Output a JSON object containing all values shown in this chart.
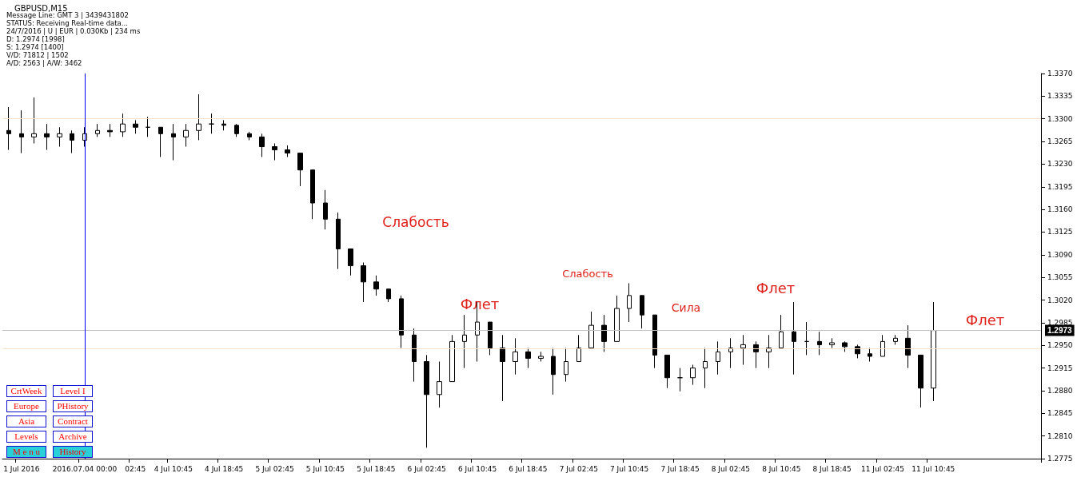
{
  "chart_data": [
    {
      "type": "candlestick",
      "title": "GBPUSD,M15",
      "color": "#000000",
      "categories": [
        null,
        "1 Jul 2016",
        null,
        null,
        null,
        null,
        "2016.07.04 00:00",
        null,
        null,
        null,
        "02:45",
        null,
        null,
        "4 Jul 10:45",
        null,
        null,
        null,
        "4 Jul 18:45",
        null,
        null,
        null,
        "5 Jul 02:45",
        null,
        null,
        null,
        "5 Jul 10:45",
        null,
        null,
        null,
        "5 Jul 18:45",
        null,
        null,
        null,
        "6 Jul 02:45",
        null,
        null,
        null,
        "6 Jul 10:45",
        null,
        null,
        null,
        "6 Jul 18:45",
        null,
        null,
        null,
        "7 Jul 02:45",
        null,
        null,
        null,
        "7 Jul 10:45",
        null,
        null,
        null,
        "7 Jul 18:45",
        null,
        null,
        null,
        "8 Jul 02:45",
        null,
        null,
        null,
        "8 Jul 10:45",
        null,
        null,
        null,
        "8 Jul 18:45",
        null,
        null,
        null,
        "11 Jul 02:45",
        null,
        null,
        null,
        "11 Jul 10:45",
        null,
        null,
        null,
        null,
        null,
        null,
        null,
        null
      ],
      "ohlc": [
        [
          1.3282,
          1.3318,
          1.3252,
          1.3277
        ],
        [
          1.3277,
          1.3313,
          1.3247,
          1.3272
        ],
        [
          1.3272,
          1.3333,
          1.3262,
          1.3277
        ],
        [
          1.3277,
          1.3292,
          1.3252,
          1.3272
        ],
        [
          1.3272,
          1.3287,
          1.3257,
          1.3277
        ],
        [
          1.3277,
          1.3282,
          1.3247,
          1.3267
        ],
        [
          1.3267,
          1.3287,
          1.3257,
          1.3277
        ],
        [
          1.3277,
          1.3292,
          1.3272,
          1.3282
        ],
        [
          1.3282,
          1.3292,
          1.3272,
          1.328
        ],
        [
          1.328,
          1.3308,
          1.3272,
          1.3292
        ],
        [
          1.3292,
          1.3298,
          1.3277,
          1.3287
        ],
        [
          1.3287,
          1.3303,
          1.3272,
          1.3287
        ],
        [
          1.3287,
          1.3287,
          1.3241,
          1.3277
        ],
        [
          1.3277,
          1.3292,
          1.3236,
          1.3272
        ],
        [
          1.3272,
          1.3292,
          1.3257,
          1.3282
        ],
        [
          1.3282,
          1.3338,
          1.3267,
          1.3292
        ],
        [
          1.3292,
          1.3308,
          1.3277,
          1.3292
        ],
        [
          1.3292,
          1.3298,
          1.3282,
          1.329
        ],
        [
          1.329,
          1.3292,
          1.3272,
          1.3277
        ],
        [
          1.3277,
          1.328,
          1.3267,
          1.3272
        ],
        [
          1.3272,
          1.3277,
          1.3241,
          1.3257
        ],
        [
          1.3257,
          1.3262,
          1.3236,
          1.3252
        ],
        [
          1.3252,
          1.3259,
          1.3241,
          1.3247
        ],
        [
          1.3247,
          1.3247,
          1.3196,
          1.3221
        ],
        [
          1.3221,
          1.3221,
          1.3145,
          1.317
        ],
        [
          1.317,
          1.319,
          1.3129,
          1.3145
        ],
        [
          1.3145,
          1.3155,
          1.3068,
          1.3099
        ],
        [
          1.3099,
          1.3099,
          1.3058,
          1.3073
        ],
        [
          1.3073,
          1.3078,
          1.3017,
          1.3048
        ],
        [
          1.3048,
          1.3058,
          1.3027,
          1.3037
        ],
        [
          1.3037,
          1.3037,
          1.3017,
          1.3022
        ],
        [
          1.3022,
          1.3027,
          1.2946,
          1.2966
        ],
        [
          1.2966,
          1.2976,
          1.2894,
          1.2925
        ],
        [
          1.2925,
          1.2935,
          1.2792,
          1.2874
        ],
        [
          1.2874,
          1.2925,
          1.2854,
          1.2894
        ],
        [
          1.2894,
          1.2966,
          1.2894,
          1.2956
        ],
        [
          1.2956,
          1.2997,
          1.2915,
          1.2966
        ],
        [
          1.2966,
          1.3017,
          1.2925,
          1.2986
        ],
        [
          1.2986,
          1.2986,
          1.2935,
          1.2946
        ],
        [
          1.2946,
          1.2966,
          1.2864,
          1.2925
        ],
        [
          1.2925,
          1.2961,
          1.2905,
          1.294
        ],
        [
          1.294,
          1.2946,
          1.2915,
          1.293
        ],
        [
          1.293,
          1.294,
          1.2925,
          1.2933
        ],
        [
          1.2933,
          1.2946,
          1.2874,
          1.2905
        ],
        [
          1.2905,
          1.2946,
          1.2894,
          1.2925
        ],
        [
          1.2925,
          1.2966,
          1.2925,
          1.2946
        ],
        [
          1.2946,
          1.3002,
          1.2946,
          1.2981
        ],
        [
          1.2981,
          1.2997,
          1.294,
          1.2956
        ],
        [
          1.2956,
          1.3027,
          1.2956,
          1.3007
        ],
        [
          1.3007,
          1.3046,
          1.2986,
          1.3027
        ],
        [
          1.3027,
          1.3027,
          1.2976,
          1.2997
        ],
        [
          1.2997,
          1.2997,
          1.2915,
          1.2935
        ],
        [
          1.2935,
          1.2935,
          1.2884,
          1.29
        ],
        [
          1.29,
          1.2915,
          1.2879,
          1.29
        ],
        [
          1.29,
          1.292,
          1.2889,
          1.2915
        ],
        [
          1.2915,
          1.2946,
          1.2884,
          1.2925
        ],
        [
          1.2925,
          1.2956,
          1.2905,
          1.294
        ],
        [
          1.294,
          1.2961,
          1.2915,
          1.2946
        ],
        [
          1.2946,
          1.2966,
          1.292,
          1.2951
        ],
        [
          1.2951,
          1.2956,
          1.2915,
          1.294
        ],
        [
          1.294,
          1.2966,
          1.2915,
          1.2946
        ],
        [
          1.2946,
          1.2997,
          1.2946,
          1.2971
        ],
        [
          1.2971,
          1.3017,
          1.2905,
          1.2956
        ],
        [
          1.2956,
          1.2986,
          1.2935,
          1.2956
        ],
        [
          1.2956,
          1.2971,
          1.2935,
          1.2951
        ],
        [
          1.2951,
          1.2961,
          1.2946,
          1.2954
        ],
        [
          1.2954,
          1.2956,
          1.294,
          1.2948
        ],
        [
          1.2948,
          1.2951,
          1.293,
          1.2937
        ],
        [
          1.2937,
          1.2946,
          1.2925,
          1.2933
        ],
        [
          1.2933,
          1.2966,
          1.2933,
          1.2956
        ],
        [
          1.2956,
          1.2966,
          1.2951,
          1.2961
        ],
        [
          1.2961,
          1.2981,
          1.2915,
          1.2935
        ],
        [
          1.2935,
          1.2935,
          1.2854,
          1.2884
        ],
        [
          1.2884,
          1.3017,
          1.2864,
          1.2973
        ],
        null,
        null,
        null,
        null,
        null,
        null,
        null,
        null
      ],
      "ylim": [
        1.2775,
        1.337
      ],
      "yticks": [
        {
          "value": 1.2775,
          "label": "1.2775"
        },
        {
          "value": 1.281,
          "label": "1.2810"
        },
        {
          "value": 1.2845,
          "label": "1.2845"
        },
        {
          "value": 1.288,
          "label": "1.2880"
        },
        {
          "value": 1.2915,
          "label": "1.2915"
        },
        {
          "value": 1.295,
          "label": "1.2950"
        },
        {
          "value": 1.2985,
          "label": "1.2985"
        },
        {
          "value": 1.302,
          "label": "1.3020"
        },
        {
          "value": 1.3055,
          "label": "1.3055"
        },
        {
          "value": 1.309,
          "label": "1.3090"
        },
        {
          "value": 1.3125,
          "label": "1.3125"
        },
        {
          "value": 1.316,
          "label": "1.3160"
        },
        {
          "value": 1.3195,
          "label": "1.3195"
        },
        {
          "value": 1.323,
          "label": "1.3230"
        },
        {
          "value": 1.3265,
          "label": "1.3265"
        },
        {
          "value": 1.33,
          "label": "1.3300"
        },
        {
          "value": 1.3335,
          "label": "1.3335"
        },
        {
          "value": 1.337,
          "label": "1.3370"
        }
      ],
      "ref_lines": [
        {
          "axis": "y",
          "value": 1.2973,
          "label": "1.2973",
          "color": "#c0c0c0"
        },
        {
          "axis": "y",
          "value": 1.33,
          "color": "#fbe3cc"
        },
        {
          "axis": "y",
          "value": 1.2945,
          "color": "#fbe3cc"
        },
        {
          "axis": "x",
          "value": "2016.07.04 00:00",
          "color": "#0000ff"
        }
      ],
      "annotations": [
        "Слабость",
        "Флет",
        "Слабость",
        "Сила",
        "Флет",
        "Флет"
      ]
    },
    {
      "type": "other",
      "annotations": [
        "Message Line: GMT 3 | 3439431802",
        "STATUS: Receiving Real-time data...",
        "24/7/2016 | U | EUR | 0.030Kb | 234 ms",
        "D: 1.2974 [1998]",
        "S: 1.2974 [1400]",
        "V/D: 71812 | 1502",
        "A/D: 2563 | A/W: 3462"
      ]
    },
    {
      "type": "other",
      "annotations": [
        "CrtWeek",
        "Level I",
        "Europe",
        "PHistory",
        "Asia",
        "Contract",
        "Levels",
        "Archive",
        "M e n u",
        "History"
      ]
    }
  ]
}
